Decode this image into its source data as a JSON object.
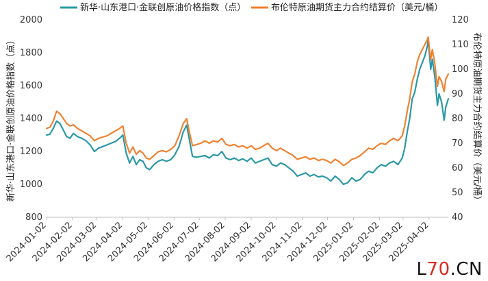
{
  "chart_data": {
    "type": "line",
    "legend_position": "top-center",
    "grid": false,
    "ylabel_left": "新华·山东港口·金联创原油价格指数（点）",
    "ylabel_right": "布伦特原油期货主力合约结算价（美元/桶）",
    "ylim_left": [
      800,
      2000
    ],
    "ylim_right": [
      40,
      120
    ],
    "yticks_left": [
      800,
      1000,
      1200,
      1400,
      1600,
      1800,
      2000
    ],
    "yticks_right": [
      40,
      50,
      60,
      70,
      80,
      90,
      100,
      110,
      120
    ],
    "xticks": [
      "2024-01-02",
      "2024-02-02",
      "2024-03-02",
      "2024-04-02",
      "2024-05-02",
      "2024-06-02",
      "2024-07-02",
      "2024-08-02",
      "2024-09-02",
      "2024-10-02",
      "2024-11-02",
      "2024-12-02",
      "2025-01-02",
      "2025-02-02",
      "2025-03-02",
      "2025-04-02"
    ],
    "series": [
      {
        "name": "新华·山东港口·金联创原油价格指数（点）",
        "axis": "left",
        "color": "#2a98a6",
        "points": [
          [
            "2024-01-02",
            1300
          ],
          [
            "2024-01-06",
            1305
          ],
          [
            "2024-01-10",
            1340
          ],
          [
            "2024-01-14",
            1385
          ],
          [
            "2024-01-18",
            1370
          ],
          [
            "2024-01-22",
            1330
          ],
          [
            "2024-01-26",
            1290
          ],
          [
            "2024-01-30",
            1280
          ],
          [
            "2024-02-03",
            1310
          ],
          [
            "2024-02-08",
            1290
          ],
          [
            "2024-02-13",
            1280
          ],
          [
            "2024-02-18",
            1265
          ],
          [
            "2024-02-23",
            1240
          ],
          [
            "2024-02-28",
            1200
          ],
          [
            "2024-03-04",
            1220
          ],
          [
            "2024-03-09",
            1230
          ],
          [
            "2024-03-14",
            1240
          ],
          [
            "2024-03-19",
            1250
          ],
          [
            "2024-03-24",
            1260
          ],
          [
            "2024-03-29",
            1280
          ],
          [
            "2024-04-02",
            1300
          ],
          [
            "2024-04-06",
            1190
          ],
          [
            "2024-04-10",
            1130
          ],
          [
            "2024-04-14",
            1170
          ],
          [
            "2024-04-18",
            1120
          ],
          [
            "2024-04-22",
            1150
          ],
          [
            "2024-04-26",
            1140
          ],
          [
            "2024-04-30",
            1100
          ],
          [
            "2024-05-04",
            1090
          ],
          [
            "2024-05-09",
            1120
          ],
          [
            "2024-05-14",
            1140
          ],
          [
            "2024-05-19",
            1150
          ],
          [
            "2024-05-24",
            1140
          ],
          [
            "2024-05-29",
            1150
          ],
          [
            "2024-06-03",
            1180
          ],
          [
            "2024-06-08",
            1230
          ],
          [
            "2024-06-13",
            1320
          ],
          [
            "2024-06-17",
            1360
          ],
          [
            "2024-06-20",
            1280
          ],
          [
            "2024-06-24",
            1170
          ],
          [
            "2024-06-29",
            1165
          ],
          [
            "2024-07-04",
            1170
          ],
          [
            "2024-07-09",
            1175
          ],
          [
            "2024-07-14",
            1160
          ],
          [
            "2024-07-19",
            1180
          ],
          [
            "2024-07-24",
            1175
          ],
          [
            "2024-07-29",
            1200
          ],
          [
            "2024-08-03",
            1160
          ],
          [
            "2024-08-08",
            1150
          ],
          [
            "2024-08-13",
            1160
          ],
          [
            "2024-08-18",
            1145
          ],
          [
            "2024-08-23",
            1155
          ],
          [
            "2024-08-28",
            1140
          ],
          [
            "2024-09-02",
            1160
          ],
          [
            "2024-09-07",
            1130
          ],
          [
            "2024-09-12",
            1140
          ],
          [
            "2024-09-17",
            1150
          ],
          [
            "2024-09-22",
            1160
          ],
          [
            "2024-09-27",
            1120
          ],
          [
            "2024-10-02",
            1110
          ],
          [
            "2024-10-07",
            1130
          ],
          [
            "2024-10-12",
            1120
          ],
          [
            "2024-10-17",
            1100
          ],
          [
            "2024-10-22",
            1080
          ],
          [
            "2024-10-27",
            1050
          ],
          [
            "2024-11-01",
            1060
          ],
          [
            "2024-11-06",
            1070
          ],
          [
            "2024-11-11",
            1050
          ],
          [
            "2024-11-16",
            1060
          ],
          [
            "2024-11-21",
            1045
          ],
          [
            "2024-11-26",
            1050
          ],
          [
            "2024-12-01",
            1040
          ],
          [
            "2024-12-06",
            1020
          ],
          [
            "2024-12-11",
            1050
          ],
          [
            "2024-12-16",
            1030
          ],
          [
            "2024-12-21",
            1000
          ],
          [
            "2024-12-26",
            1010
          ],
          [
            "2024-12-31",
            1040
          ],
          [
            "2025-01-05",
            1020
          ],
          [
            "2025-01-10",
            1030
          ],
          [
            "2025-01-15",
            1060
          ],
          [
            "2025-01-20",
            1080
          ],
          [
            "2025-01-25",
            1070
          ],
          [
            "2025-01-30",
            1100
          ],
          [
            "2025-02-04",
            1120
          ],
          [
            "2025-02-09",
            1110
          ],
          [
            "2025-02-14",
            1130
          ],
          [
            "2025-02-19",
            1140
          ],
          [
            "2025-02-24",
            1120
          ],
          [
            "2025-03-01",
            1160
          ],
          [
            "2025-03-04",
            1220
          ],
          [
            "2025-03-07",
            1320
          ],
          [
            "2025-03-10",
            1400
          ],
          [
            "2025-03-13",
            1520
          ],
          [
            "2025-03-16",
            1560
          ],
          [
            "2025-03-19",
            1640
          ],
          [
            "2025-03-22",
            1700
          ],
          [
            "2025-03-25",
            1740
          ],
          [
            "2025-03-28",
            1780
          ],
          [
            "2025-03-31",
            1840
          ],
          [
            "2025-04-01",
            1880
          ],
          [
            "2025-04-04",
            1700
          ],
          [
            "2025-04-06",
            1760
          ],
          [
            "2025-04-09",
            1650
          ],
          [
            "2025-04-12",
            1480
          ],
          [
            "2025-04-14",
            1550
          ],
          [
            "2025-04-17",
            1500
          ],
          [
            "2025-04-20",
            1390
          ],
          [
            "2025-04-22",
            1470
          ],
          [
            "2025-04-25",
            1520
          ]
        ]
      },
      {
        "name": "布伦特原油期货主力合约结算价（美元/桶）",
        "axis": "right",
        "color": "#ef8232",
        "points": [
          [
            "2024-01-02",
            76
          ],
          [
            "2024-01-06",
            76.5
          ],
          [
            "2024-01-10",
            79
          ],
          [
            "2024-01-14",
            83
          ],
          [
            "2024-01-18",
            82
          ],
          [
            "2024-01-22",
            80
          ],
          [
            "2024-01-26",
            78
          ],
          [
            "2024-01-30",
            77
          ],
          [
            "2024-02-03",
            77.5
          ],
          [
            "2024-02-08",
            76
          ],
          [
            "2024-02-13",
            75
          ],
          [
            "2024-02-18",
            74
          ],
          [
            "2024-02-23",
            73
          ],
          [
            "2024-02-28",
            71
          ],
          [
            "2024-03-04",
            72
          ],
          [
            "2024-03-09",
            72.5
          ],
          [
            "2024-03-14",
            73
          ],
          [
            "2024-03-19",
            74
          ],
          [
            "2024-03-24",
            75
          ],
          [
            "2024-03-29",
            76
          ],
          [
            "2024-04-02",
            77
          ],
          [
            "2024-04-06",
            70
          ],
          [
            "2024-04-10",
            66
          ],
          [
            "2024-04-14",
            68.5
          ],
          [
            "2024-04-18",
            65.5
          ],
          [
            "2024-04-22",
            67
          ],
          [
            "2024-04-26",
            66
          ],
          [
            "2024-04-30",
            64
          ],
          [
            "2024-05-04",
            63.5
          ],
          [
            "2024-05-09",
            65
          ],
          [
            "2024-05-14",
            66.5
          ],
          [
            "2024-05-19",
            67
          ],
          [
            "2024-05-24",
            66.5
          ],
          [
            "2024-05-29",
            67.5
          ],
          [
            "2024-06-03",
            69
          ],
          [
            "2024-06-08",
            73
          ],
          [
            "2024-06-13",
            78
          ],
          [
            "2024-06-17",
            80
          ],
          [
            "2024-06-20",
            75
          ],
          [
            "2024-06-24",
            69
          ],
          [
            "2024-06-29",
            69.5
          ],
          [
            "2024-07-04",
            70
          ],
          [
            "2024-07-09",
            71
          ],
          [
            "2024-07-14",
            70
          ],
          [
            "2024-07-19",
            71
          ],
          [
            "2024-07-24",
            70.5
          ],
          [
            "2024-07-29",
            72
          ],
          [
            "2024-08-03",
            69.5
          ],
          [
            "2024-08-08",
            69
          ],
          [
            "2024-08-13",
            69.5
          ],
          [
            "2024-08-18",
            68.5
          ],
          [
            "2024-08-23",
            69
          ],
          [
            "2024-08-28",
            68
          ],
          [
            "2024-09-02",
            69
          ],
          [
            "2024-09-07",
            67.5
          ],
          [
            "2024-09-12",
            68
          ],
          [
            "2024-09-17",
            69
          ],
          [
            "2024-09-22",
            70
          ],
          [
            "2024-09-27",
            68
          ],
          [
            "2024-10-02",
            67
          ],
          [
            "2024-10-07",
            68
          ],
          [
            "2024-10-12",
            67
          ],
          [
            "2024-10-17",
            66
          ],
          [
            "2024-10-22",
            65
          ],
          [
            "2024-10-27",
            63.5
          ],
          [
            "2024-11-01",
            64
          ],
          [
            "2024-11-06",
            64.5
          ],
          [
            "2024-11-11",
            63.5
          ],
          [
            "2024-11-16",
            64
          ],
          [
            "2024-11-21",
            63
          ],
          [
            "2024-11-26",
            63.5
          ],
          [
            "2024-12-01",
            63
          ],
          [
            "2024-12-06",
            62
          ],
          [
            "2024-12-11",
            63.5
          ],
          [
            "2024-12-16",
            62.5
          ],
          [
            "2024-12-21",
            61
          ],
          [
            "2024-12-26",
            62
          ],
          [
            "2024-12-31",
            63.5
          ],
          [
            "2025-01-05",
            64
          ],
          [
            "2025-01-10",
            65
          ],
          [
            "2025-01-15",
            66.5
          ],
          [
            "2025-01-20",
            68
          ],
          [
            "2025-01-25",
            67.5
          ],
          [
            "2025-01-30",
            69
          ],
          [
            "2025-02-04",
            70
          ],
          [
            "2025-02-09",
            69.5
          ],
          [
            "2025-02-14",
            71
          ],
          [
            "2025-02-19",
            72
          ],
          [
            "2025-02-24",
            71
          ],
          [
            "2025-03-01",
            73
          ],
          [
            "2025-03-04",
            77
          ],
          [
            "2025-03-07",
            83
          ],
          [
            "2025-03-10",
            88
          ],
          [
            "2025-03-13",
            95
          ],
          [
            "2025-03-16",
            98
          ],
          [
            "2025-03-19",
            103
          ],
          [
            "2025-03-22",
            106
          ],
          [
            "2025-03-25",
            108
          ],
          [
            "2025-03-28",
            110
          ],
          [
            "2025-03-31",
            112
          ],
          [
            "2025-04-01",
            113
          ],
          [
            "2025-04-04",
            104
          ],
          [
            "2025-04-06",
            108
          ],
          [
            "2025-04-09",
            102
          ],
          [
            "2025-04-12",
            93
          ],
          [
            "2025-04-14",
            97
          ],
          [
            "2025-04-17",
            95
          ],
          [
            "2025-04-20",
            91
          ],
          [
            "2025-04-22",
            96
          ],
          [
            "2025-04-25",
            98
          ]
        ]
      }
    ]
  },
  "watermark": {
    "prefix": "L",
    "accent": "70",
    "suffix": ".CN"
  }
}
